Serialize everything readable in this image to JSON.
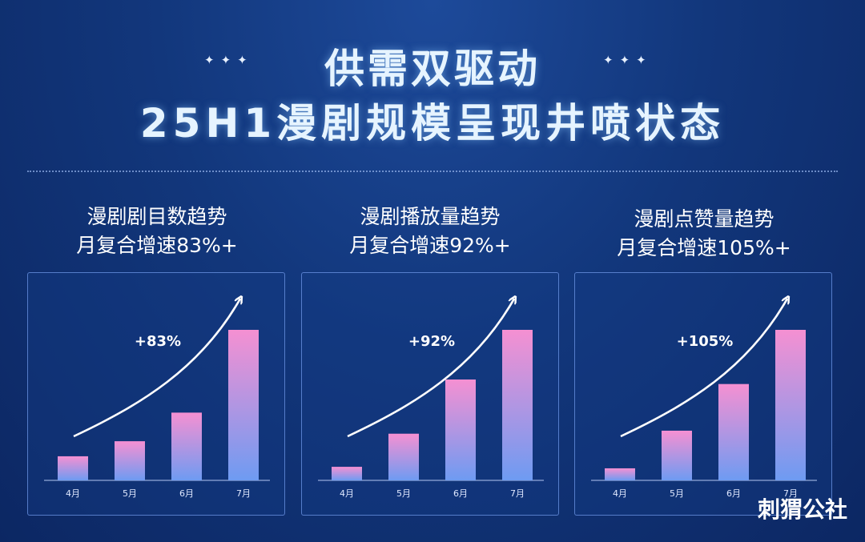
{
  "header": {
    "stars_left": "✦✦✦",
    "stars_right": "✦✦✦",
    "title_line1": "供需双驱动",
    "title_line2": "25H1漫剧规模呈现井喷状态"
  },
  "panels": [
    {
      "title": "漫剧剧目数趋势",
      "subtitle": "月复合增速83%+"
    },
    {
      "title": "漫剧播放量趋势",
      "subtitle": "月复合增速92%+"
    },
    {
      "title": "漫剧点赞量趋势",
      "subtitle": "月复合增速105%+"
    }
  ],
  "chart_data": [
    {
      "type": "bar",
      "categories": [
        "4月",
        "5月",
        "6月",
        "7月"
      ],
      "values": [
        16,
        26,
        45,
        100
      ],
      "annotation": "+83%",
      "ylim": [
        0,
        100
      ],
      "grid": false,
      "colors": {
        "top": "#f590d2",
        "bottom": "#6e9bf2"
      }
    },
    {
      "type": "bar",
      "categories": [
        "4月",
        "5月",
        "6月",
        "7月"
      ],
      "values": [
        9,
        31,
        67,
        100
      ],
      "annotation": "+92%",
      "ylim": [
        0,
        100
      ],
      "grid": false,
      "colors": {
        "top": "#f590d2",
        "bottom": "#6e9bf2"
      }
    },
    {
      "type": "bar",
      "categories": [
        "4月",
        "5月",
        "6月",
        "7月"
      ],
      "values": [
        8,
        33,
        64,
        100
      ],
      "annotation": "+105%",
      "ylim": [
        0,
        100
      ],
      "grid": false,
      "colors": {
        "top": "#f590d2",
        "bottom": "#6e9bf2"
      }
    }
  ],
  "watermark": "刺猬公社"
}
